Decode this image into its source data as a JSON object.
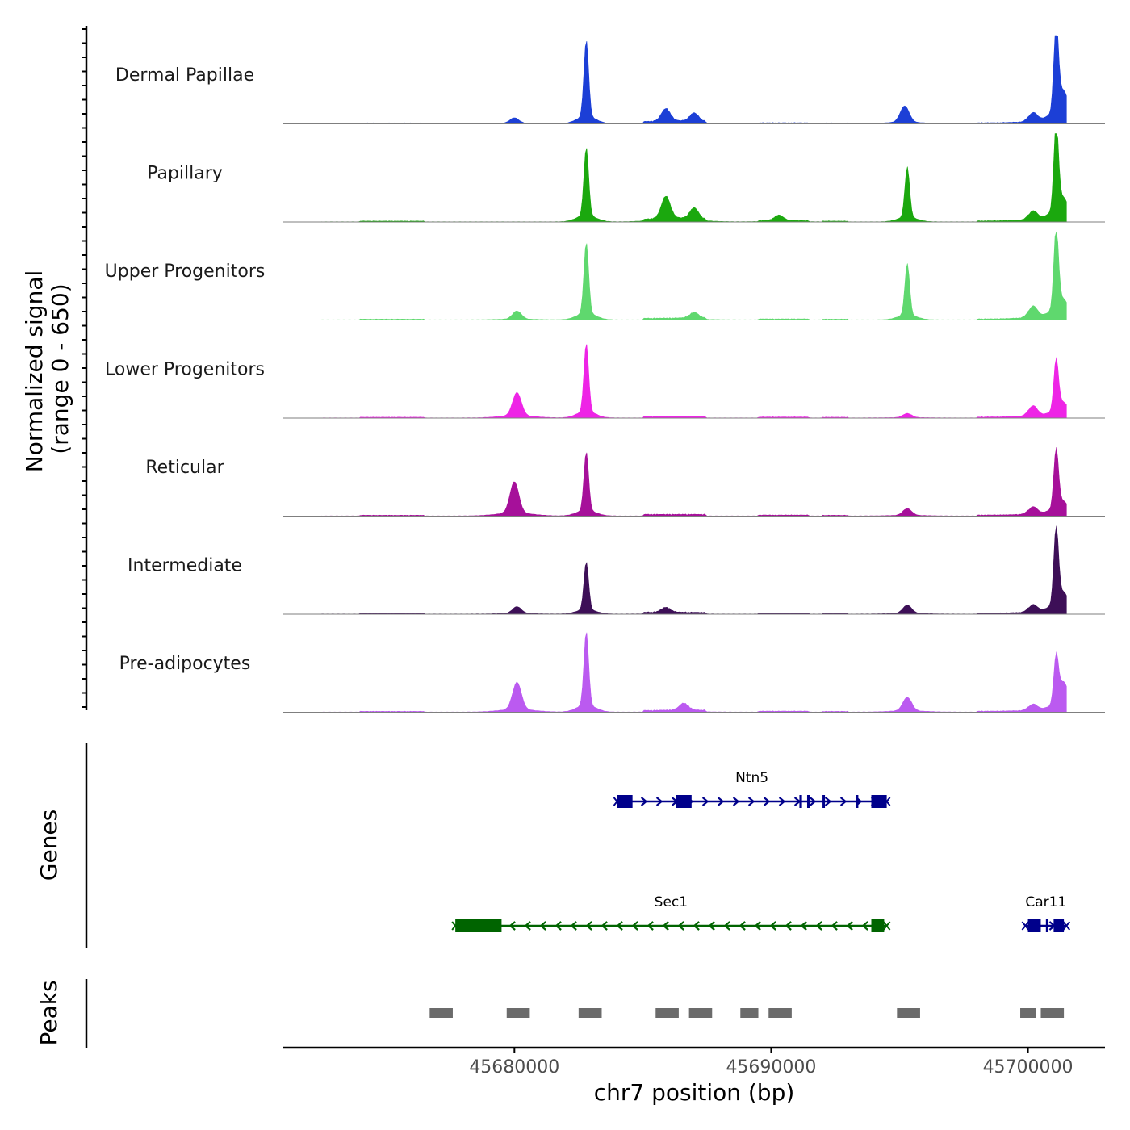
{
  "chart_data": {
    "type": "area",
    "chromosome": "chr7",
    "xlim": [
      45671000,
      45703000
    ],
    "xlabel": "chr7 position (bp)",
    "x_ticks": [
      45680000,
      45690000,
      45700000
    ],
    "x_tick_labels": [
      "45680000",
      "45690000",
      "45700000"
    ],
    "ylabel_line1": "Normalized signal",
    "ylabel_line2": "(range 0 - 650)",
    "yrange": [
      0,
      650
    ],
    "genes_label": "Genes",
    "peaks_label": "Peaks",
    "series": [
      {
        "name": "Dermal Papillae",
        "color": "#1c3fd6",
        "peaks": [
          {
            "x": 45680000,
            "y": 40
          },
          {
            "x": 45682800,
            "y": 560
          },
          {
            "x": 45685900,
            "y": 90
          },
          {
            "x": 45687000,
            "y": 60
          },
          {
            "x": 45695200,
            "y": 120
          },
          {
            "x": 45700200,
            "y": 70
          },
          {
            "x": 45701100,
            "y": 640
          },
          {
            "x": 45701400,
            "y": 180
          }
        ]
      },
      {
        "name": "Papillary",
        "color": "#1ba80e",
        "peaks": [
          {
            "x": 45682800,
            "y": 500
          },
          {
            "x": 45685900,
            "y": 160
          },
          {
            "x": 45687000,
            "y": 80
          },
          {
            "x": 45690300,
            "y": 40
          },
          {
            "x": 45695300,
            "y": 370
          },
          {
            "x": 45700200,
            "y": 70
          },
          {
            "x": 45701100,
            "y": 640
          },
          {
            "x": 45701400,
            "y": 120
          }
        ]
      },
      {
        "name": "Upper Progenitors",
        "color": "#5fd86e",
        "peaks": [
          {
            "x": 45680100,
            "y": 60
          },
          {
            "x": 45682800,
            "y": 520
          },
          {
            "x": 45687000,
            "y": 40
          },
          {
            "x": 45695300,
            "y": 380
          },
          {
            "x": 45700200,
            "y": 90
          },
          {
            "x": 45701100,
            "y": 600
          },
          {
            "x": 45701400,
            "y": 100
          }
        ]
      },
      {
        "name": "Lower Progenitors",
        "color": "#ee24e6",
        "peaks": [
          {
            "x": 45680100,
            "y": 170
          },
          {
            "x": 45682800,
            "y": 500
          },
          {
            "x": 45695300,
            "y": 30
          },
          {
            "x": 45700200,
            "y": 80
          },
          {
            "x": 45701100,
            "y": 380
          },
          {
            "x": 45701400,
            "y": 80
          }
        ]
      },
      {
        "name": "Reticular",
        "color": "#a6109a",
        "peaks": [
          {
            "x": 45680000,
            "y": 230
          },
          {
            "x": 45682800,
            "y": 430
          },
          {
            "x": 45695300,
            "y": 50
          },
          {
            "x": 45700200,
            "y": 60
          },
          {
            "x": 45701100,
            "y": 440
          },
          {
            "x": 45701400,
            "y": 70
          }
        ]
      },
      {
        "name": "Intermediate",
        "color": "#3d0f57",
        "peaks": [
          {
            "x": 45680100,
            "y": 50
          },
          {
            "x": 45682800,
            "y": 350
          },
          {
            "x": 45685900,
            "y": 35
          },
          {
            "x": 45695300,
            "y": 60
          },
          {
            "x": 45700200,
            "y": 60
          },
          {
            "x": 45701100,
            "y": 570
          },
          {
            "x": 45701400,
            "y": 110
          }
        ]
      },
      {
        "name": "Pre-adipocytes",
        "color": "#bb5af0",
        "peaks": [
          {
            "x": 45680100,
            "y": 200
          },
          {
            "x": 45682800,
            "y": 540
          },
          {
            "x": 45686600,
            "y": 50
          },
          {
            "x": 45695300,
            "y": 100
          },
          {
            "x": 45700200,
            "y": 50
          },
          {
            "x": 45701100,
            "y": 350
          },
          {
            "x": 45701400,
            "y": 180
          }
        ]
      }
    ],
    "genes": [
      {
        "name": "Ntn5",
        "strand": "+",
        "color": "#00008b",
        "start": 45684000,
        "end": 45694500,
        "row": 1,
        "exons": [
          [
            45684000,
            45684600
          ],
          [
            45686300,
            45686900
          ],
          [
            45691100,
            45691200
          ],
          [
            45691400,
            45691500
          ],
          [
            45692000,
            45692060
          ],
          [
            45693300,
            45693360
          ],
          [
            45693900,
            45694500
          ]
        ]
      },
      {
        "name": "Sec1",
        "strand": "-",
        "color": "#006400",
        "start": 45677700,
        "end": 45694500,
        "row": 2,
        "exons": [
          [
            45677700,
            45679500
          ],
          [
            45693900,
            45694400
          ]
        ]
      },
      {
        "name": "Car11",
        "strand": "+",
        "color": "#00008b",
        "start": 45699900,
        "end": 45701500,
        "row": 2,
        "exons": [
          [
            45700000,
            45700500
          ],
          [
            45700700,
            45700800
          ],
          [
            45701000,
            45701400
          ]
        ]
      }
    ],
    "peaks": [
      [
        45676700,
        45677600
      ],
      [
        45679700,
        45680600
      ],
      [
        45682500,
        45683400
      ],
      [
        45685500,
        45686400
      ],
      [
        45686800,
        45687700
      ],
      [
        45688800,
        45689500
      ],
      [
        45689900,
        45690800
      ],
      [
        45694900,
        45695800
      ],
      [
        45699700,
        45700300
      ],
      [
        45700500,
        45701400
      ]
    ]
  }
}
